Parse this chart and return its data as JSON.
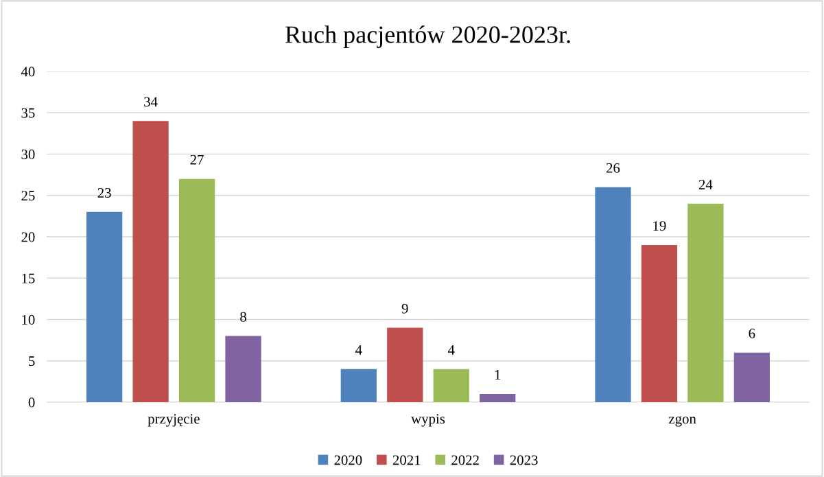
{
  "chart_data": {
    "type": "bar",
    "title": "Ruch pacjentów 2020-2023r.",
    "categories": [
      "przyjęcie",
      "wypis",
      "zgon"
    ],
    "series": [
      {
        "name": "2020",
        "color": "#4f81bd",
        "values": [
          23,
          4,
          26
        ]
      },
      {
        "name": "2021",
        "color": "#c0504d",
        "values": [
          34,
          9,
          19
        ]
      },
      {
        "name": "2022",
        "color": "#9bbb59",
        "values": [
          27,
          4,
          24
        ]
      },
      {
        "name": "2023",
        "color": "#8064a2",
        "values": [
          8,
          1,
          6
        ]
      }
    ],
    "ylim": [
      0,
      40
    ],
    "yticks": [
      0,
      5,
      10,
      15,
      20,
      25,
      30,
      35,
      40
    ],
    "grid": "y",
    "legend": "bottom",
    "data_labels": true
  }
}
